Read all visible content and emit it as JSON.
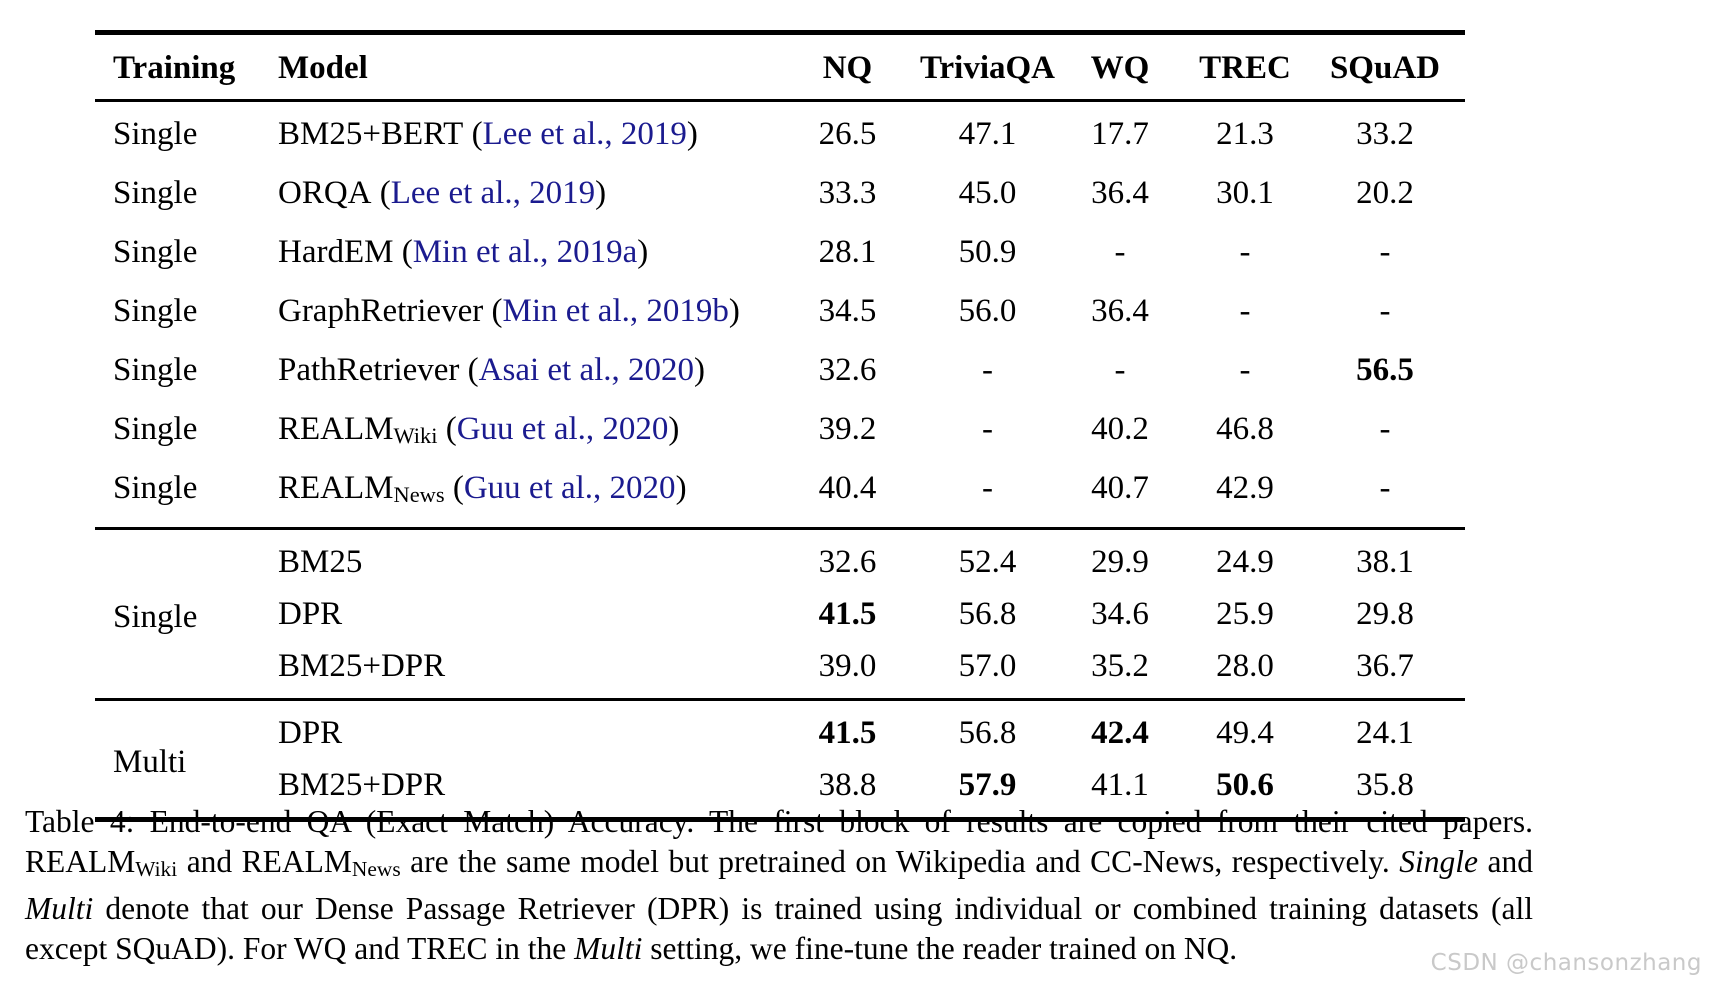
{
  "table": {
    "cite_open": " (",
    "cite_close": ")",
    "link_color": "#1b1b8f",
    "headers": {
      "training": "Training",
      "model": "Model",
      "nq": "NQ",
      "triviaqa": "TriviaQA",
      "wq": "WQ",
      "trec": "TREC",
      "squad": "SQuAD"
    },
    "blocks": [
      {
        "rows": [
          {
            "training": "Single",
            "model": "BM25+BERT",
            "sub": "",
            "citation": "Lee et al., 2019",
            "nq": "26.5",
            "triviaqa": "47.1",
            "wq": "17.7",
            "trec": "21.3",
            "squad": "33.2"
          },
          {
            "training": "Single",
            "model": "ORQA",
            "sub": "",
            "citation": "Lee et al., 2019",
            "nq": "33.3",
            "triviaqa": "45.0",
            "wq": "36.4",
            "trec": "30.1",
            "squad": "20.2"
          },
          {
            "training": "Single",
            "model": "HardEM",
            "sub": "",
            "citation": "Min et al., 2019a",
            "nq": "28.1",
            "triviaqa": "50.9",
            "wq": "-",
            "trec": "-",
            "squad": "-"
          },
          {
            "training": "Single",
            "model": "GraphRetriever",
            "sub": "",
            "citation": "Min et al., 2019b",
            "nq": "34.5",
            "triviaqa": "56.0",
            "wq": "36.4",
            "trec": "-",
            "squad": "-"
          },
          {
            "training": "Single",
            "model": "PathRetriever",
            "sub": "",
            "citation": "Asai et al., 2020",
            "nq": "32.6",
            "triviaqa": "-",
            "wq": "-",
            "trec": "-",
            "squad": "56.5",
            "bold": [
              "squad"
            ]
          },
          {
            "training": "Single",
            "model": "REALM",
            "sub": "Wiki",
            "citation": "Guu et al., 2020",
            "nq": "39.2",
            "triviaqa": "-",
            "wq": "40.2",
            "trec": "46.8",
            "squad": "-"
          },
          {
            "training": "Single",
            "model": "REALM",
            "sub": "News",
            "citation": "Guu et al., 2020",
            "nq": "40.4",
            "triviaqa": "-",
            "wq": "40.7",
            "trec": "42.9",
            "squad": "-"
          }
        ]
      },
      {
        "label": "Single",
        "rows": [
          {
            "model": "BM25",
            "nq": "32.6",
            "triviaqa": "52.4",
            "wq": "29.9",
            "trec": "24.9",
            "squad": "38.1"
          },
          {
            "model": "DPR",
            "nq": "41.5",
            "triviaqa": "56.8",
            "wq": "34.6",
            "trec": "25.9",
            "squad": "29.8",
            "bold": [
              "nq"
            ]
          },
          {
            "model": "BM25+DPR",
            "nq": "39.0",
            "triviaqa": "57.0",
            "wq": "35.2",
            "trec": "28.0",
            "squad": "36.7"
          }
        ]
      },
      {
        "label": "Multi",
        "rows": [
          {
            "model": "DPR",
            "nq": "41.5",
            "triviaqa": "56.8",
            "wq": "42.4",
            "trec": "49.4",
            "squad": "24.1",
            "bold": [
              "nq",
              "wq"
            ]
          },
          {
            "model": "BM25+DPR",
            "nq": "38.8",
            "triviaqa": "57.9",
            "wq": "41.1",
            "trec": "50.6",
            "squad": "35.8",
            "bold": [
              "triviaqa",
              "trec"
            ]
          }
        ]
      }
    ]
  },
  "caption": {
    "segments": [
      {
        "t": "Table 4: End-to-end QA (Exact Match) Accuracy. The first block of results are copied from their cited papers. REALM"
      },
      {
        "t": "Wiki"
      },
      {
        "t": " and REALM"
      },
      {
        "t": "News"
      },
      {
        "t": " are the same model but pretrained on Wikipedia and CC-News, respectively. "
      },
      {
        "t": "Single"
      },
      {
        "t": " and "
      },
      {
        "t": "Multi"
      },
      {
        "t": " denote that our Dense Passage Retriever (DPR) is trained using individual or combined training datasets (all except SQuAD). For WQ and TREC in the "
      },
      {
        "t": "Multi"
      },
      {
        "t": " setting, we fine-tune the reader trained on NQ."
      }
    ]
  },
  "watermark": "CSDN @chansonzhang"
}
